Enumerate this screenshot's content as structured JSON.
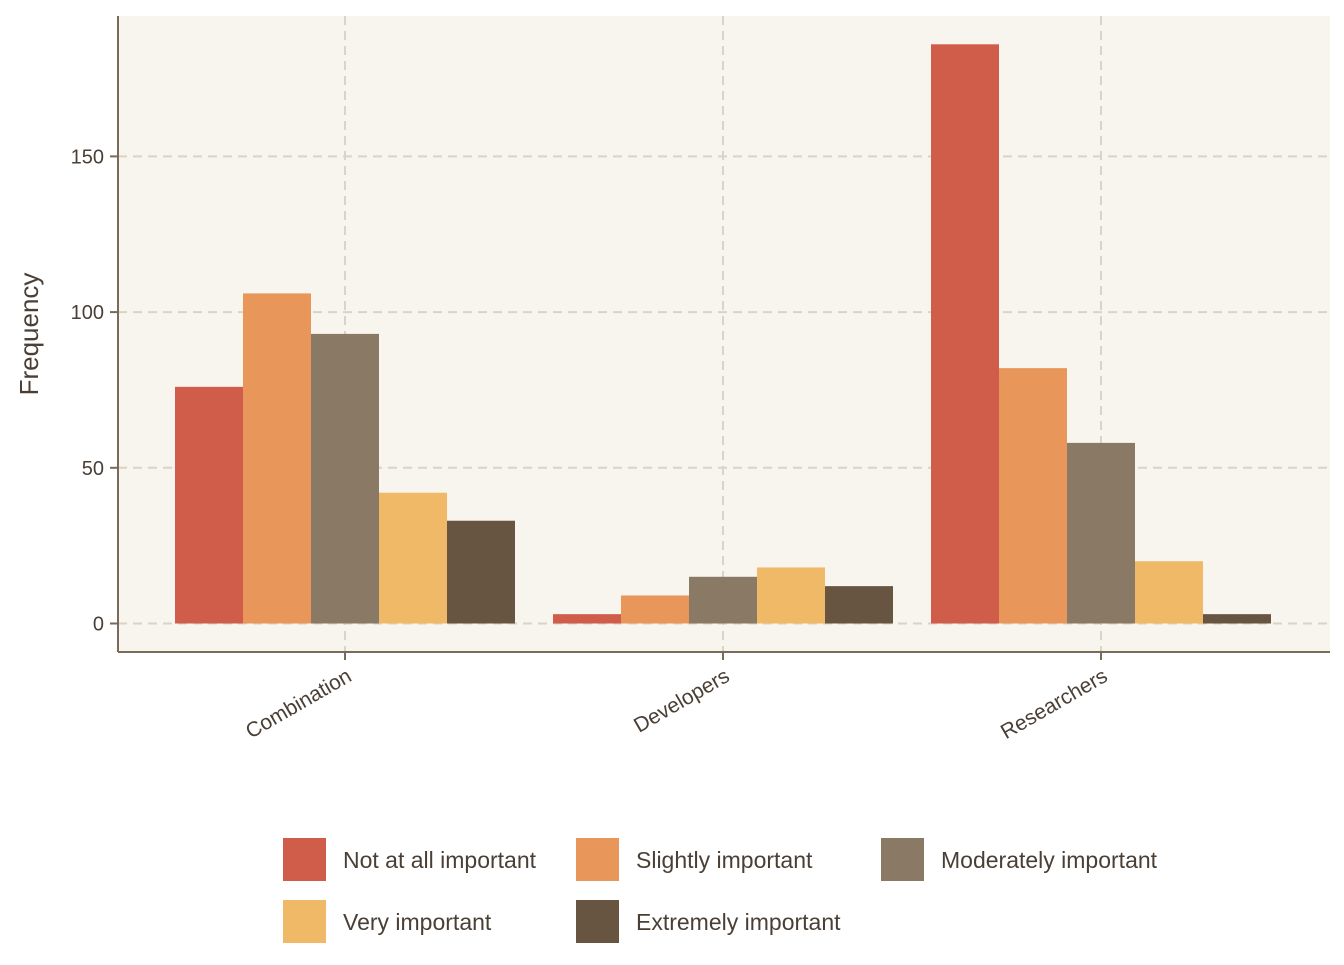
{
  "chart_data": {
    "type": "bar",
    "title": "",
    "xlabel": "",
    "ylabel": "Frequency",
    "ylim": [
      0,
      190
    ],
    "yticks": [
      0,
      50,
      100,
      150
    ],
    "grid": true,
    "legend_position": "bottom",
    "categories": [
      "Combination",
      "Developers",
      "Researchers"
    ],
    "series": [
      {
        "name": "Not at all important",
        "color": "#d05c4a",
        "values": [
          76,
          3,
          186
        ]
      },
      {
        "name": "Slightly important",
        "color": "#e8965a",
        "values": [
          106,
          9,
          82
        ]
      },
      {
        "name": "Moderately important",
        "color": "#8a7a65",
        "values": [
          93,
          15,
          58
        ]
      },
      {
        "name": "Very important",
        "color": "#f0b967",
        "values": [
          42,
          18,
          20
        ]
      },
      {
        "name": "Extremely important",
        "color": "#675542",
        "values": [
          33,
          12,
          3
        ]
      }
    ]
  },
  "colors": {
    "panel_background": "#f8f5ef",
    "grid": "#d9d4c8",
    "axis": "#7a6a58"
  }
}
